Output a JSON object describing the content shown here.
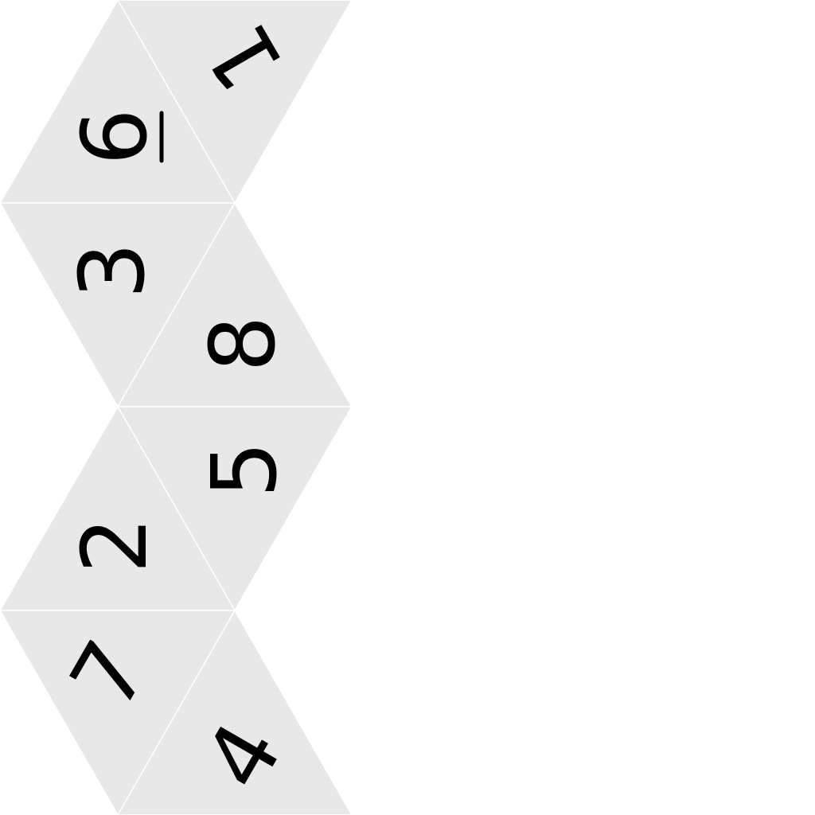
{
  "faces": [
    {
      "label": "1",
      "underline": false
    },
    {
      "label": "6",
      "underline": true
    },
    {
      "label": "3",
      "underline": false
    },
    {
      "label": "8",
      "underline": false
    },
    {
      "label": "5",
      "underline": false
    },
    {
      "label": "2",
      "underline": false
    },
    {
      "label": "7",
      "underline": false
    },
    {
      "label": "4",
      "underline": false
    }
  ],
  "colors": {
    "face_fill": "#e8e8e8",
    "edge": "#ffffff",
    "text": "#000000",
    "background": "#ffffff"
  }
}
